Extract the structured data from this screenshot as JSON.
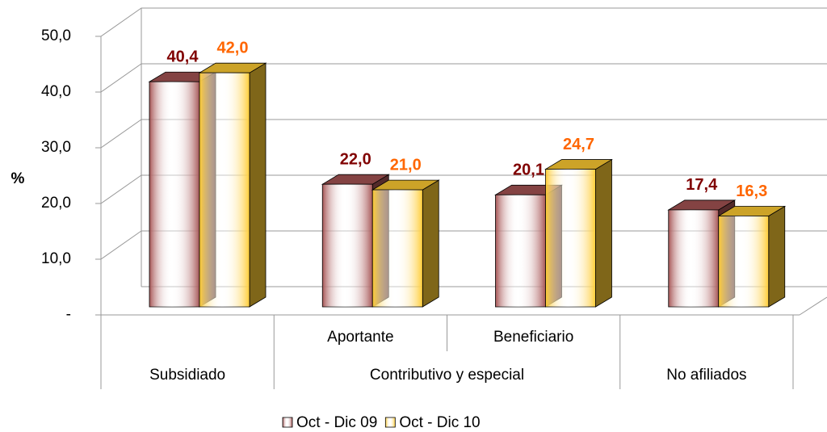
{
  "chart_data": {
    "type": "bar3d",
    "y_label": "%",
    "category_groups": [
      {
        "name": "Subsidiado",
        "categories": [
          null
        ]
      },
      {
        "name": "Contributivo y especial",
        "categories": [
          "Aportante",
          "Beneficiario"
        ]
      },
      {
        "name": "No afiliados",
        "categories": [
          null
        ]
      }
    ],
    "series": [
      {
        "name": "Oct - Dic 09",
        "color": "#a65454",
        "label_color": "#800000",
        "values": [
          40.4,
          22.0,
          20.1,
          17.4
        ],
        "value_labels": [
          "40,4",
          "22,0",
          "20,1",
          "17,4"
        ]
      },
      {
        "name": "Oct - Dic 10",
        "color": "#ffcc33",
        "label_color": "#ff6600",
        "values": [
          42.0,
          21.0,
          24.7,
          16.3
        ],
        "value_labels": [
          "42,0",
          "21,0",
          "24,7",
          "16,3"
        ]
      }
    ],
    "ylim": [
      0,
      50
    ],
    "yticks": [
      {
        "value": 0,
        "label": "-"
      },
      {
        "value": 10,
        "label": "10,0"
      },
      {
        "value": 20,
        "label": "20,0"
      },
      {
        "value": 30,
        "label": "30,0"
      },
      {
        "value": 40,
        "label": "40,0"
      },
      {
        "value": 50,
        "label": "50,0"
      }
    ],
    "grid": true,
    "legend": "bottom"
  }
}
